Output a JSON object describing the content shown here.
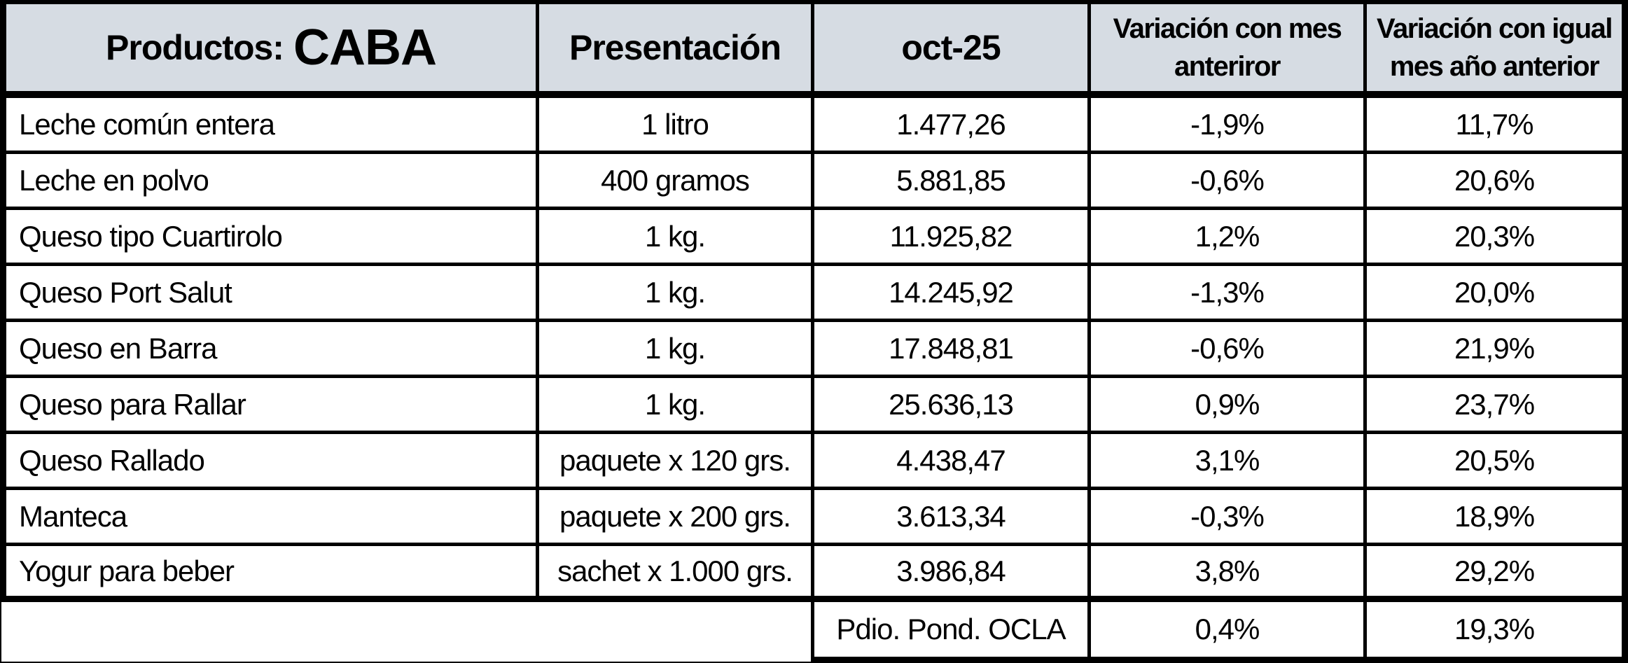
{
  "colors": {
    "header_bg": "#d6dce3",
    "border": "#000000",
    "text": "#000000"
  },
  "table": {
    "header": {
      "products_label": "Productos:",
      "region": "CABA",
      "presentation": "Presentación",
      "month": "oct-25",
      "var_month": "Variación con mes\nanteriror",
      "var_year": "Variación con igual\nmes año anterior"
    },
    "rows": [
      {
        "product": "Leche común entera",
        "presentation": "1 litro",
        "price": "1.477,26",
        "var_month": "-1,9%",
        "var_year": "11,7%"
      },
      {
        "product": "Leche en polvo",
        "presentation": "400 gramos",
        "price": "5.881,85",
        "var_month": "-0,6%",
        "var_year": "20,6%"
      },
      {
        "product": "Queso tipo Cuartirolo",
        "presentation": "1 kg.",
        "price": "11.925,82",
        "var_month": "1,2%",
        "var_year": "20,3%"
      },
      {
        "product": "Queso Port Salut",
        "presentation": "1 kg.",
        "price": "14.245,92",
        "var_month": "-1,3%",
        "var_year": "20,0%"
      },
      {
        "product": "Queso en Barra",
        "presentation": "1 kg.",
        "price": "17.848,81",
        "var_month": "-0,6%",
        "var_year": "21,9%"
      },
      {
        "product": "Queso para Rallar",
        "presentation": "1 kg.",
        "price": "25.636,13",
        "var_month": "0,9%",
        "var_year": "23,7%"
      },
      {
        "product": "Queso Rallado",
        "presentation": "paquete x 120 grs.",
        "price": "4.438,47",
        "var_month": "3,1%",
        "var_year": "20,5%"
      },
      {
        "product": "Manteca",
        "presentation": "paquete x 200 grs.",
        "price": "3.613,34",
        "var_month": "-0,3%",
        "var_year": "18,9%"
      },
      {
        "product": "Yogur para beber",
        "presentation": "sachet x 1.000 grs.",
        "price": "3.986,84",
        "var_month": "3,8%",
        "var_year": "29,2%"
      }
    ],
    "footer": {
      "label": "Pdio. Pond. OCLA",
      "var_month": "0,4%",
      "var_year": "19,3%"
    }
  }
}
